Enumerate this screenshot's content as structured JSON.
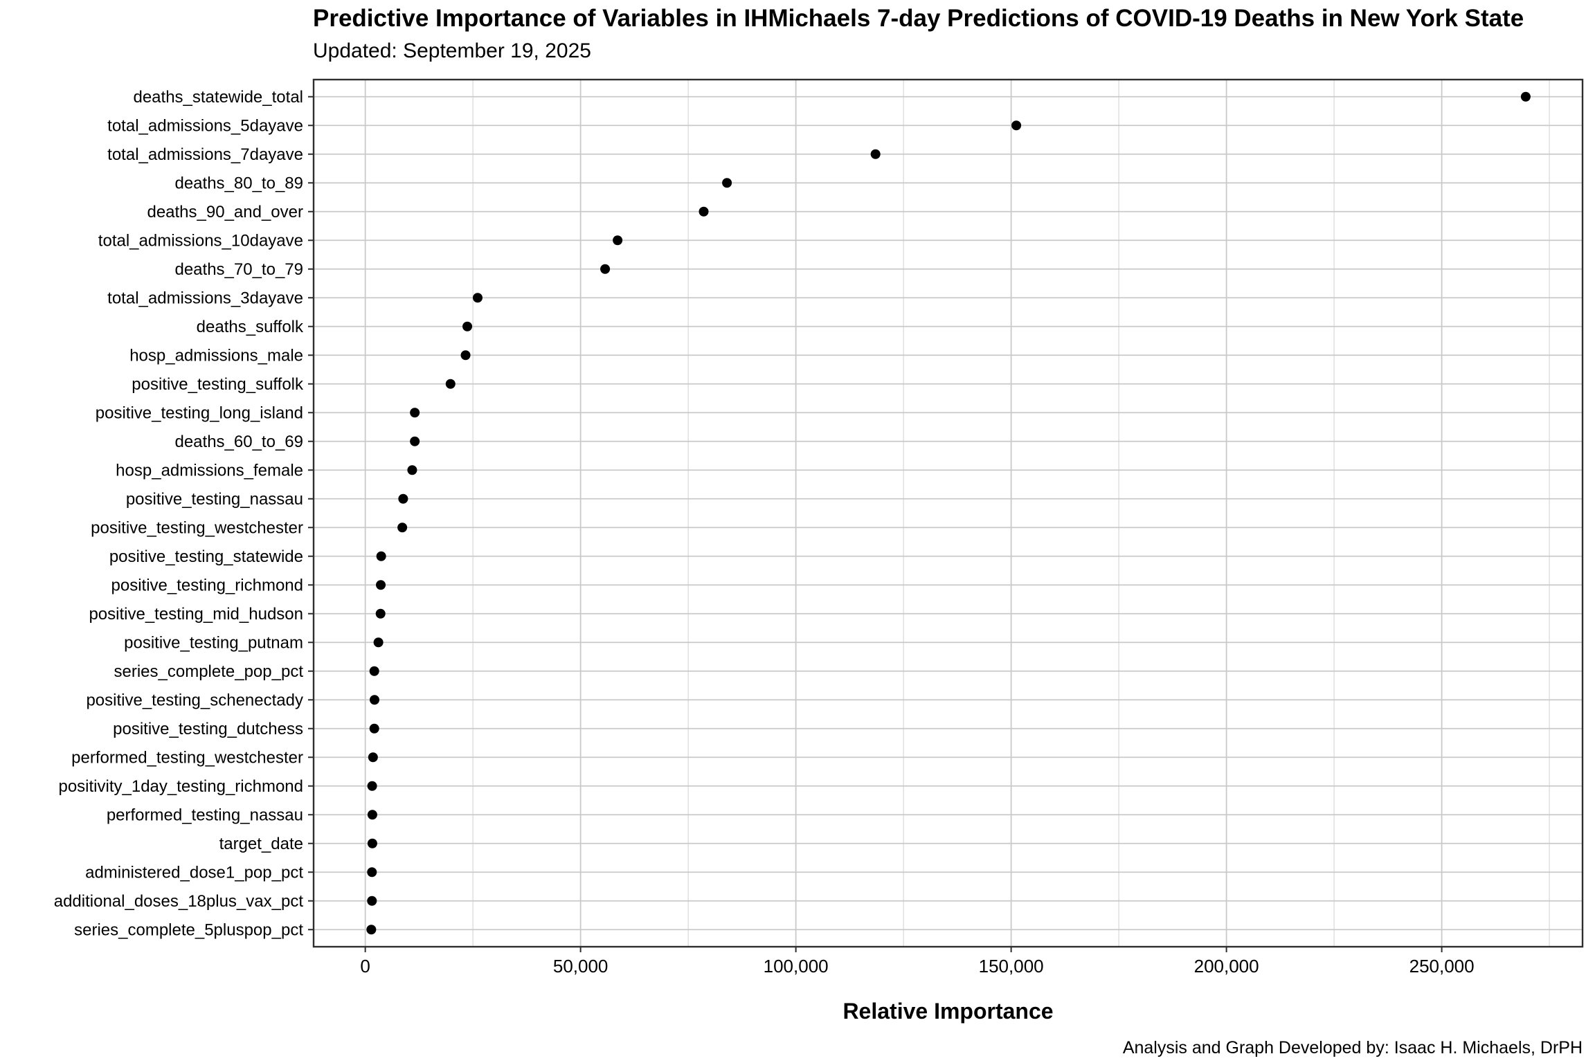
{
  "header": {
    "title": "Predictive Importance of Variables in IHMichaels 7-day Predictions of COVID-19 Deaths in New York State",
    "subtitle": "Updated: September 19, 2025"
  },
  "caption": "Analysis and Graph Developed by: Isaac H. Michaels, DrPH",
  "chart_data": {
    "type": "scatter",
    "variant": "cleveland-dot-plot",
    "orientation": "horizontal",
    "title": "Predictive Importance of Variables in IHMichaels 7-day Predictions of COVID-19 Deaths in New York State",
    "subtitle": "Updated: September 19, 2025",
    "xlabel": "Relative Importance",
    "ylabel": "",
    "legend": "none",
    "grid": "major and minor vertical gridlines, one horizontal gridline per category",
    "xlim": [
      -12000,
      282700
    ],
    "x_major_ticks": [
      0,
      50000,
      100000,
      150000,
      200000,
      250000
    ],
    "x_major_tick_labels": [
      "0",
      "50,000",
      "100,000",
      "150,000",
      "200,000",
      "250,000"
    ],
    "x_minor_ticks": [
      25000,
      75000,
      125000,
      175000,
      225000,
      275000
    ],
    "categories": [
      "deaths_statewide_total",
      "total_admissions_5dayave",
      "total_admissions_7dayave",
      "deaths_80_to_89",
      "deaths_90_and_over",
      "total_admissions_10dayave",
      "deaths_70_to_79",
      "total_admissions_3dayave",
      "deaths_suffolk",
      "hosp_admissions_male",
      "positive_testing_suffolk",
      "positive_testing_long_island",
      "deaths_60_to_69",
      "hosp_admissions_female",
      "positive_testing_nassau",
      "positive_testing_westchester",
      "positive_testing_statewide",
      "positive_testing_richmond",
      "positive_testing_mid_hudson",
      "positive_testing_putnam",
      "series_complete_pop_pct",
      "positive_testing_schenectady",
      "positive_testing_dutchess",
      "performed_testing_westchester",
      "positivity_1day_testing_richmond",
      "performed_testing_nassau",
      "target_date",
      "administered_dose1_pop_pct",
      "additional_doses_18plus_vax_pct",
      "series_complete_5pluspop_pct"
    ],
    "values": [
      269500,
      151200,
      118500,
      84000,
      78600,
      58600,
      55700,
      26100,
      23700,
      23300,
      19800,
      11500,
      11500,
      10900,
      8800,
      8600,
      3700,
      3600,
      3550,
      3050,
      2100,
      2150,
      2100,
      1800,
      1600,
      1650,
      1650,
      1550,
      1550,
      1400
    ],
    "style": {
      "point_color": "#000000",
      "grid_major_color": "#c9c9c9",
      "grid_minor_color": "#dddddd",
      "panel_border_color": "#2e2e2e",
      "tick_color": "#2e2e2e",
      "text_color": "#000000",
      "background": "#ffffff"
    }
  }
}
